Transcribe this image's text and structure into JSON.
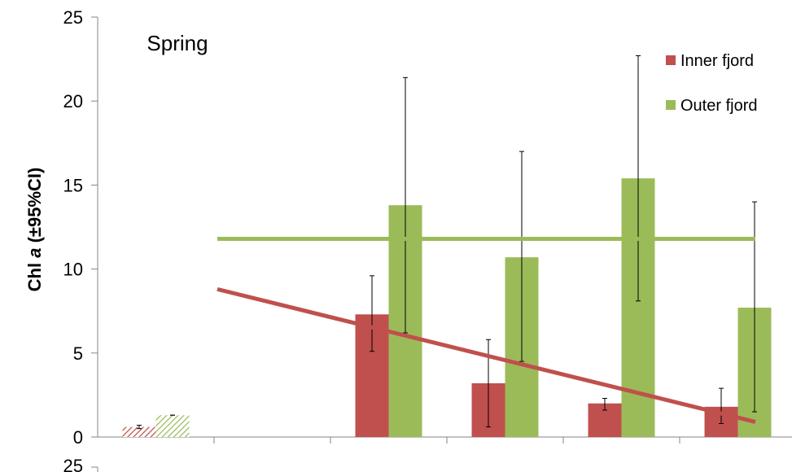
{
  "chart_data": {
    "type": "bar",
    "title": "",
    "annotation": "Spring",
    "ylabel_main": "Chl ",
    "ylabel_italic": "a",
    "ylabel_tail": " (±95%CI)",
    "xlabel": "",
    "ylim": [
      0,
      25
    ],
    "yticks": [
      0,
      5,
      10,
      15,
      20,
      25
    ],
    "ytick_labels": [
      "0",
      "5",
      "10",
      "15",
      "20",
      "25"
    ],
    "next_panel_tick": "25",
    "category_count": 6,
    "legend_position": "top-right",
    "series": [
      {
        "name": "Inner fjord",
        "color": "#c0504d",
        "values": [
          0.6,
          null,
          7.3,
          3.2,
          2.0,
          1.8
        ],
        "ci_low": [
          0.5,
          null,
          5.1,
          0.6,
          1.6,
          0.8
        ],
        "ci_high": [
          0.7,
          null,
          9.6,
          5.8,
          2.3,
          2.9
        ],
        "hatched": [
          true,
          false,
          false,
          false,
          false,
          false
        ]
      },
      {
        "name": "Outer fjord",
        "color": "#9bbb59",
        "values": [
          1.3,
          null,
          13.8,
          10.7,
          15.4,
          7.7
        ],
        "ci_low": [
          1.3,
          null,
          6.2,
          4.5,
          8.1,
          1.5
        ],
        "ci_high": [
          1.3,
          null,
          21.4,
          17.0,
          22.7,
          14.0
        ],
        "hatched": [
          true,
          false,
          false,
          false,
          false,
          false
        ]
      }
    ],
    "trendlines": [
      {
        "series": "Inner fjord",
        "color": "#c0504d",
        "x_start": 1.0,
        "y_start": 8.8,
        "x_end": 5.65,
        "y_end": 0.9
      },
      {
        "series": "Outer fjord",
        "color": "#9bbb59",
        "x_start": 1.0,
        "y_start": 11.8,
        "x_end": 5.65,
        "y_end": 11.8
      }
    ]
  }
}
